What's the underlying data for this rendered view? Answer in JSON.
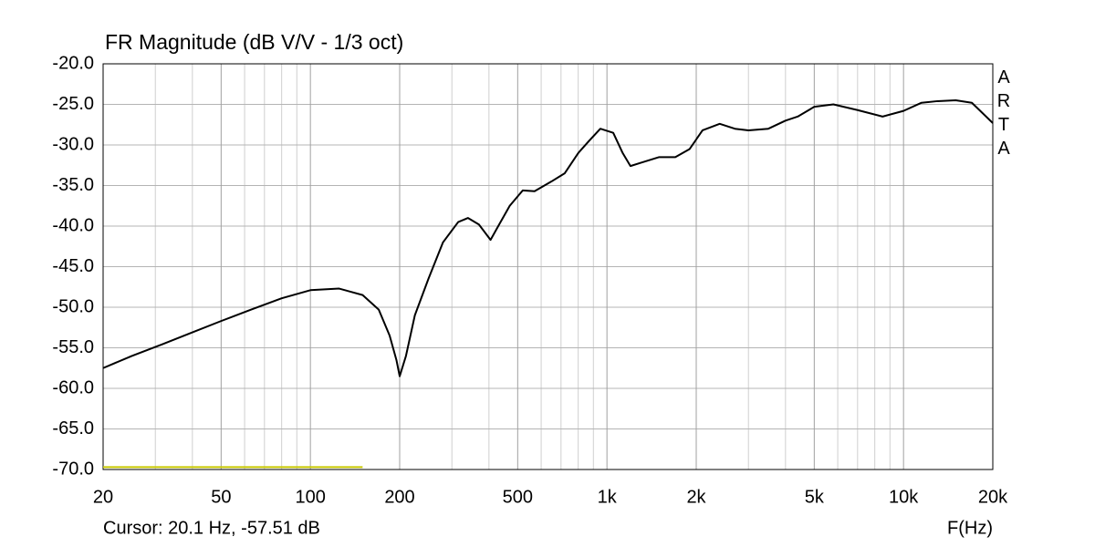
{
  "chart_data": {
    "type": "line",
    "title": "FR Magnitude (dB V/V - 1/3 oct)",
    "x_label": "F(Hz)",
    "cursor": "Cursor: 20.1 Hz, -57.51 dB",
    "brand": "ARTA",
    "log_x": true,
    "grid": true,
    "xlim": [
      20,
      20000
    ],
    "ylim": [
      -70,
      -20
    ],
    "xticks": [
      20,
      50,
      100,
      200,
      500,
      {
        "value": 1000,
        "label": "1k"
      },
      {
        "value": 2000,
        "label": "2k"
      },
      {
        "value": 5000,
        "label": "5k"
      },
      {
        "value": 10000,
        "label": "10k"
      },
      {
        "value": 20000,
        "label": "20k"
      }
    ],
    "xgrid": [
      30,
      40,
      60,
      70,
      80,
      90,
      300,
      400,
      600,
      700,
      800,
      900,
      3000,
      4000,
      6000,
      7000,
      8000,
      9000
    ],
    "yticks": [
      {
        "value": -20,
        "label": "-20.0"
      },
      {
        "value": -25,
        "label": "-25.0"
      },
      {
        "value": -30,
        "label": "-30.0"
      },
      {
        "value": -35,
        "label": "-35.0"
      },
      {
        "value": -40,
        "label": "-40.0"
      },
      {
        "value": -45,
        "label": "-45.0"
      },
      {
        "value": -50,
        "label": "-50.0"
      },
      {
        "value": -55,
        "label": "-55.0"
      },
      {
        "value": -60,
        "label": "-60.0"
      },
      {
        "value": -65,
        "label": "-65.0"
      },
      {
        "value": -70,
        "label": "-70.0"
      }
    ],
    "x": [
      20,
      25,
      31.5,
      40,
      50,
      63,
      80,
      100,
      125,
      150,
      170,
      185,
      195,
      200,
      210,
      225,
      250,
      280,
      315,
      340,
      370,
      405,
      430,
      470,
      520,
      570,
      650,
      720,
      800,
      870,
      950,
      1050,
      1130,
      1200,
      1300,
      1500,
      1700,
      1900,
      2100,
      2400,
      2700,
      3000,
      3500,
      4000,
      4400,
      5000,
      5800,
      7000,
      8500,
      10000,
      11500,
      13000,
      15000,
      17000,
      20000
    ],
    "series": [
      {
        "color": "#000000",
        "values": [
          -57.5,
          -56.0,
          -54.6,
          -53.1,
          -51.7,
          -50.3,
          -48.9,
          -47.9,
          -47.7,
          -48.5,
          -50.3,
          -53.5,
          -56.5,
          -58.5,
          -56.0,
          -51.0,
          -46.5,
          -42.0,
          -39.5,
          -39.0,
          -39.8,
          -41.7,
          -40.0,
          -37.5,
          -35.6,
          -35.7,
          -34.5,
          -33.5,
          -31.0,
          -29.5,
          -28.0,
          -28.5,
          -31.0,
          -32.6,
          -32.2,
          -31.5,
          -31.5,
          -30.5,
          -28.2,
          -27.4,
          -28.0,
          -28.2,
          -28.0,
          -27.0,
          -26.5,
          -25.3,
          -25.0,
          -25.7,
          -26.5,
          -25.8,
          -24.8,
          -24.6,
          -24.5,
          -24.8,
          -27.3
        ]
      }
    ],
    "reference": {
      "color": "#c8c800",
      "x": [
        20,
        150
      ],
      "values": [
        -69.7,
        -69.7
      ]
    }
  }
}
